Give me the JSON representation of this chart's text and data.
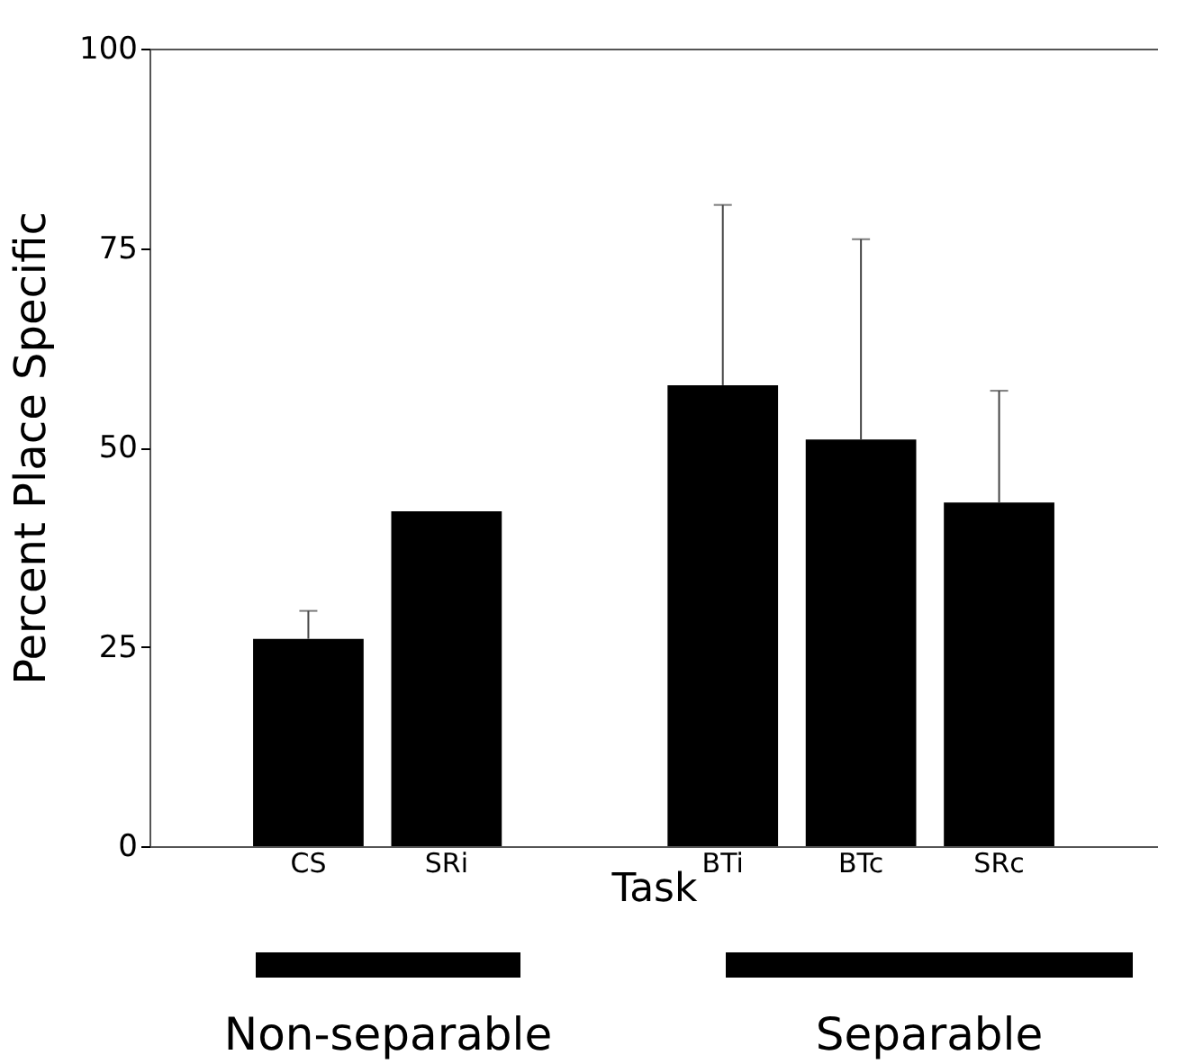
{
  "chart_data": {
    "type": "bar",
    "ylabel": "Percent Place Specific",
    "xlabel": "Task",
    "categories": [
      "CS",
      "SRi",
      null,
      "BTi",
      "BTc",
      "SRc"
    ],
    "values": [
      26,
      42,
      null,
      57.8,
      51,
      43.1
    ],
    "errors": [
      [
        26,
        29.5
      ],
      null,
      null,
      [
        57.8,
        80.4
      ],
      [
        51,
        76.1
      ],
      [
        43.1,
        57.1
      ]
    ],
    "color": "#000000",
    "ylim": [
      0,
      100
    ],
    "yticks": [
      0,
      25,
      50,
      75,
      100
    ],
    "grid": false,
    "annotations": [
      "Non-separable",
      "Separable"
    ]
  }
}
